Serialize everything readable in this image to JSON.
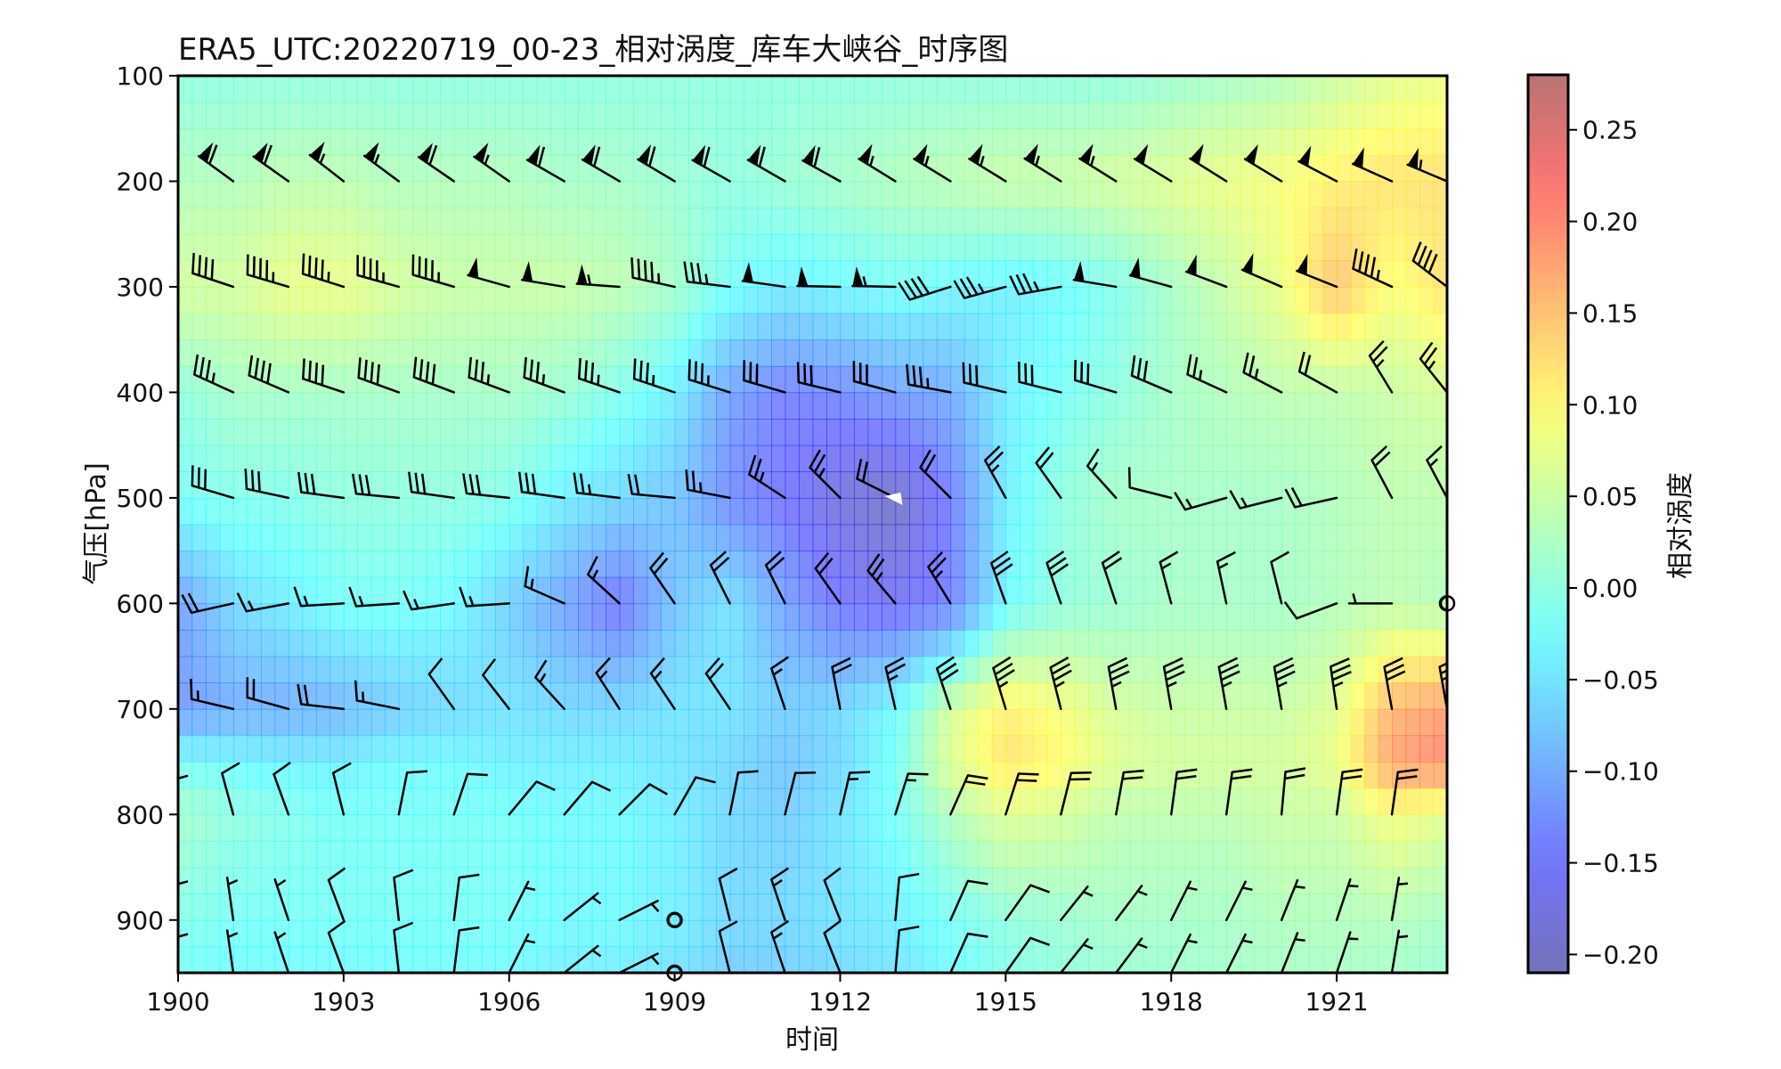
{
  "chart_data": {
    "type": "heatmap",
    "title": "ERA5_UTC:20220719_00-23_相对涡度_库车大峡谷_时序图",
    "xlabel": "时间",
    "ylabel": "气压[hPa]",
    "colorbar_label": "相对涡度",
    "x_ticks": [
      "1900",
      "1903",
      "1906",
      "1909",
      "1912",
      "1915",
      "1918",
      "1921"
    ],
    "y_ticks": [
      "100",
      "200",
      "300",
      "400",
      "500",
      "600",
      "700",
      "800",
      "900"
    ],
    "colorbar_ticks": [
      "0.25",
      "0.20",
      "0.15",
      "0.10",
      "0.05",
      "0.00",
      "−0.05",
      "−0.10",
      "−0.15",
      "−0.20"
    ],
    "xlim": [
      1900,
      1923
    ],
    "ylim": [
      100,
      950
    ],
    "y_inverted": true,
    "clim": [
      -0.21,
      0.28
    ],
    "colormap": "jet (alpha 0.5)",
    "grid": false,
    "hours": [
      1900,
      1901,
      1902,
      1903,
      1904,
      1905,
      1906,
      1907,
      1908,
      1909,
      1910,
      1911,
      1912,
      1913,
      1914,
      1915,
      1916,
      1917,
      1918,
      1919,
      1920,
      1921,
      1922,
      1923
    ],
    "levels": [
      100,
      200,
      300,
      400,
      500,
      600,
      700,
      750,
      800,
      900,
      950
    ],
    "vorticity": [
      [
        0.0,
        0.0,
        0.0,
        0.0,
        0.0,
        0.0,
        0.0,
        0.0,
        0.0,
        0.0,
        0.0,
        0.0,
        0.0,
        0.0,
        0.0,
        0.0,
        0.0,
        0.0,
        0.01,
        0.02,
        0.03,
        0.05,
        0.07,
        0.08
      ],
      [
        0.03,
        0.03,
        0.04,
        0.04,
        0.03,
        0.03,
        0.03,
        0.02,
        0.02,
        0.01,
        0.0,
        0.01,
        0.02,
        0.03,
        0.04,
        0.05,
        0.05,
        0.06,
        0.07,
        0.08,
        0.09,
        0.11,
        0.12,
        0.12
      ],
      [
        0.06,
        0.06,
        0.08,
        0.08,
        0.06,
        0.05,
        0.05,
        0.05,
        0.04,
        0.02,
        -0.02,
        -0.04,
        -0.03,
        -0.02,
        -0.03,
        -0.04,
        -0.03,
        -0.01,
        0.02,
        0.05,
        0.08,
        0.15,
        0.09,
        0.12
      ],
      [
        0.0,
        0.02,
        0.02,
        0.02,
        0.02,
        0.02,
        0.02,
        0.01,
        -0.01,
        -0.04,
        -0.11,
        -0.14,
        -0.13,
        -0.11,
        -0.1,
        -0.04,
        -0.02,
        0.0,
        0.02,
        0.03,
        0.04,
        0.04,
        0.05,
        0.06
      ],
      [
        -0.02,
        -0.01,
        -0.01,
        0.0,
        0.0,
        0.0,
        -0.01,
        -0.04,
        -0.06,
        -0.08,
        -0.13,
        -0.15,
        -0.18,
        -0.2,
        -0.14,
        -0.04,
        0.0,
        0.02,
        0.02,
        0.02,
        0.02,
        0.03,
        0.04,
        0.04
      ],
      [
        -0.11,
        -0.06,
        -0.04,
        -0.02,
        -0.02,
        -0.03,
        -0.07,
        -0.11,
        -0.15,
        -0.08,
        -0.05,
        -0.11,
        -0.15,
        -0.16,
        -0.14,
        -0.03,
        0.0,
        0.01,
        0.02,
        0.02,
        0.02,
        0.03,
        0.04,
        0.03
      ],
      [
        -0.12,
        -0.1,
        -0.1,
        -0.09,
        -0.07,
        -0.06,
        -0.05,
        -0.06,
        -0.06,
        -0.05,
        -0.05,
        -0.07,
        -0.06,
        -0.03,
        0.06,
        0.11,
        0.09,
        0.06,
        0.05,
        0.05,
        0.05,
        0.07,
        0.16,
        0.18
      ],
      [
        -0.02,
        -0.03,
        -0.04,
        -0.04,
        -0.03,
        -0.03,
        -0.04,
        -0.04,
        -0.04,
        -0.05,
        -0.06,
        -0.08,
        -0.06,
        -0.02,
        0.07,
        0.12,
        0.1,
        0.07,
        0.06,
        0.06,
        0.06,
        0.08,
        0.18,
        0.2
      ],
      [
        0.02,
        0.0,
        -0.01,
        -0.02,
        -0.02,
        -0.02,
        -0.02,
        -0.03,
        -0.03,
        -0.04,
        -0.06,
        -0.07,
        -0.05,
        -0.02,
        0.03,
        0.07,
        0.06,
        0.04,
        0.04,
        0.04,
        0.05,
        0.05,
        0.09,
        0.07
      ],
      [
        -0.01,
        -0.02,
        -0.02,
        -0.02,
        -0.02,
        -0.02,
        -0.02,
        -0.03,
        -0.03,
        -0.04,
        -0.06,
        -0.06,
        -0.05,
        -0.04,
        -0.02,
        0.0,
        0.01,
        0.02,
        0.02,
        0.02,
        0.03,
        0.03,
        0.03,
        0.02
      ],
      [
        -0.02,
        -0.03,
        -0.03,
        -0.03,
        -0.03,
        -0.03,
        -0.03,
        -0.04,
        -0.04,
        -0.05,
        -0.07,
        -0.07,
        -0.06,
        -0.05,
        -0.03,
        -0.01,
        0.0,
        0.01,
        0.01,
        0.02,
        0.02,
        0.02,
        0.02,
        0.01
      ]
    ],
    "wind_barb_levels": [
      200,
      300,
      400,
      500,
      600,
      700,
      800,
      900,
      950
    ],
    "wind_barbs": {
      "200": [
        [
          45,
          -37
        ],
        [
          48,
          -35
        ],
        [
          48,
          -34
        ],
        [
          45,
          -35
        ],
        [
          46,
          -34
        ],
        [
          48,
          -33
        ],
        [
          47,
          -33
        ],
        [
          52,
          -30
        ],
        [
          53,
          -31
        ],
        [
          52,
          -31
        ],
        [
          53,
          -30
        ],
        [
          52,
          -30
        ],
        [
          54,
          -30
        ],
        [
          47,
          -29
        ],
        [
          47,
          -29
        ],
        [
          47,
          -29
        ],
        [
          46,
          -29
        ],
        [
          45,
          -28
        ],
        [
          44,
          -27
        ],
        [
          43,
          -27
        ],
        [
          43,
          -26
        ],
        [
          44,
          -23
        ],
        [
          47,
          -21
        ],
        [
          50,
          -21
        ]
      ],
      "300": [
        [
          46,
          -14
        ],
        [
          39,
          -13
        ],
        [
          44,
          -13
        ],
        [
          44,
          -14
        ],
        [
          43,
          -12
        ],
        [
          41,
          -12
        ],
        [
          46,
          -13
        ],
        [
          49,
          -8
        ],
        [
          55,
          -4
        ],
        [
          46,
          -10
        ],
        [
          33,
          -4
        ],
        [
          51,
          -7
        ],
        [
          52,
          -1
        ],
        [
          53,
          -1
        ],
        [
          38,
          12
        ],
        [
          33,
          9
        ],
        [
          34,
          6
        ],
        [
          49,
          -8
        ],
        [
          47,
          -13
        ],
        [
          45,
          -17
        ],
        [
          44,
          -19
        ],
        [
          45,
          -18
        ],
        [
          43,
          -20
        ],
        [
          30,
          -23
        ]
      ],
      "400": [
        [
          38,
          -17
        ],
        [
          33,
          -15
        ],
        [
          35,
          -15
        ],
        [
          36,
          -12
        ],
        [
          36,
          -13
        ],
        [
          37,
          -14
        ],
        [
          35,
          -13
        ],
        [
          35,
          -13
        ],
        [
          35,
          -12
        ],
        [
          33,
          -11
        ],
        [
          32,
          -10
        ],
        [
          31,
          -9
        ],
        [
          29,
          -7
        ],
        [
          30,
          -8
        ],
        [
          32,
          -6
        ],
        [
          30,
          -7
        ],
        [
          28,
          -7
        ],
        [
          27,
          -8
        ],
        [
          26,
          -11
        ],
        [
          24,
          -11
        ],
        [
          21,
          -11
        ],
        [
          18,
          -10
        ],
        [
          14,
          -23
        ],
        [
          16,
          -20
        ]
      ],
      "500": [
        [
          29,
          -12
        ],
        [
          27,
          -8
        ],
        [
          28,
          -6
        ],
        [
          30,
          -4
        ],
        [
          31,
          -3
        ],
        [
          29,
          -4
        ],
        [
          29,
          -3
        ],
        [
          29,
          -4
        ],
        [
          25,
          -3
        ],
        [
          22,
          -2
        ],
        [
          26,
          -5
        ],
        [
          20,
          -13
        ],
        [
          18,
          -18
        ],
        [
          16,
          -8
        ],
        [
          13,
          -13
        ],
        [
          11,
          -20
        ],
        [
          12,
          -17
        ],
        [
          9,
          -10
        ],
        [
          12,
          -3
        ],
        [
          14,
          4
        ],
        [
          16,
          4
        ],
        [
          18,
          4
        ],
        [
          9,
          -17
        ],
        [
          8,
          -15
        ]
      ],
      "600": [
        [
          18,
          5
        ],
        [
          18,
          4
        ],
        [
          16,
          3
        ],
        [
          16,
          1
        ],
        [
          15,
          1
        ],
        [
          14,
          2
        ],
        [
          15,
          1
        ],
        [
          16,
          -7
        ],
        [
          12,
          -11
        ],
        [
          11,
          -16
        ],
        [
          10,
          -20
        ],
        [
          10,
          -20
        ],
        [
          12,
          -17
        ],
        [
          16,
          -19
        ],
        [
          14,
          -23
        ],
        [
          10,
          -28
        ],
        [
          9,
          -26
        ],
        [
          6,
          -18
        ],
        [
          4,
          -15
        ],
        [
          3,
          -14
        ],
        [
          2,
          -8
        ],
        [
          8,
          3
        ],
        [
          7,
          0
        ],
        [
          0,
          0
        ]
      ],
      "700": [
        [
          20,
          -2
        ],
        [
          17,
          -4
        ],
        [
          18,
          -5
        ],
        [
          18,
          -2
        ],
        [
          15,
          -3
        ],
        [
          5,
          -7
        ],
        [
          7,
          -9
        ],
        [
          11,
          -12
        ],
        [
          9,
          -14
        ],
        [
          8,
          -12
        ],
        [
          10,
          -15
        ],
        [
          5,
          -15
        ],
        [
          4,
          -21
        ],
        [
          6,
          -26
        ],
        [
          10,
          -30
        ],
        [
          10,
          -33
        ],
        [
          8,
          -32
        ],
        [
          6,
          -34
        ],
        [
          6,
          -35
        ],
        [
          6,
          -34
        ],
        [
          6,
          -35
        ],
        [
          5,
          -35
        ],
        [
          5,
          -28
        ],
        [
          5,
          -28
        ]
      ],
      "800": [
        [
          0,
          -5
        ],
        [
          3,
          -11
        ],
        [
          4,
          -11
        ],
        [
          3,
          -12
        ],
        [
          -2,
          -10
        ],
        [
          -3,
          -9
        ],
        [
          -5,
          -6
        ],
        [
          -6,
          -7
        ],
        [
          -6,
          -6
        ],
        [
          -4,
          -7
        ],
        [
          -2,
          -10
        ],
        [
          -3,
          -12
        ],
        [
          -3,
          -13
        ],
        [
          -5,
          -16
        ],
        [
          -8,
          -18
        ],
        [
          -6,
          -19
        ],
        [
          -5,
          -20
        ],
        [
          -4,
          -22
        ],
        [
          -3,
          -22
        ],
        [
          -3,
          -22
        ],
        [
          -2,
          -22
        ],
        [
          -3,
          -22
        ],
        [
          -3,
          -21
        ],
        [
          -3,
          -20
        ]
      ],
      "900": [
        [
          0,
          -4
        ],
        [
          1,
          -7
        ],
        [
          2,
          -6
        ],
        [
          3,
          -8
        ],
        [
          1,
          -9
        ],
        [
          -1,
          -8
        ],
        [
          -3,
          -6
        ],
        [
          -5,
          -4
        ],
        [
          -6,
          -3
        ],
        [
          0,
          0
        ],
        [
          3,
          -12
        ],
        [
          4,
          -12
        ],
        [
          4,
          -10
        ],
        [
          -1,
          -11
        ],
        [
          -4,
          -9
        ],
        [
          -5,
          -7
        ],
        [
          -4,
          -5
        ],
        [
          -3,
          -4
        ],
        [
          -2,
          -4
        ],
        [
          -2,
          -4
        ],
        [
          -2,
          -5
        ],
        [
          -2,
          -6
        ],
        [
          -1,
          -6
        ],
        [
          -1,
          -6
        ]
      ],
      "950": [
        [
          0,
          -4
        ],
        [
          1,
          -7
        ],
        [
          2,
          -6
        ],
        [
          3,
          -8
        ],
        [
          1,
          -9
        ],
        [
          -1,
          -8
        ],
        [
          -3,
          -6
        ],
        [
          -5,
          -4
        ],
        [
          -6,
          -3
        ],
        [
          0,
          0
        ],
        [
          3,
          -12
        ],
        [
          4,
          -12
        ],
        [
          4,
          -10
        ],
        [
          -1,
          -11
        ],
        [
          -4,
          -9
        ],
        [
          -5,
          -7
        ],
        [
          -4,
          -5
        ],
        [
          -3,
          -4
        ],
        [
          -2,
          -4
        ],
        [
          -2,
          -4
        ],
        [
          -2,
          -5
        ],
        [
          -2,
          -6
        ],
        [
          -1,
          -6
        ],
        [
          -1,
          -6
        ]
      ]
    },
    "special_marks": [
      {
        "type": "calm-circle",
        "time": 1909,
        "level": 900
      },
      {
        "type": "calm-circle",
        "time": 1909,
        "level": 950
      },
      {
        "type": "calm-circle",
        "time": 1923,
        "level": 600
      },
      {
        "type": "white-pennant",
        "time": 1913,
        "level": 500
      }
    ],
    "colors": {
      "frame": "#000000",
      "barb": "#000000",
      "text": "#111111"
    }
  }
}
